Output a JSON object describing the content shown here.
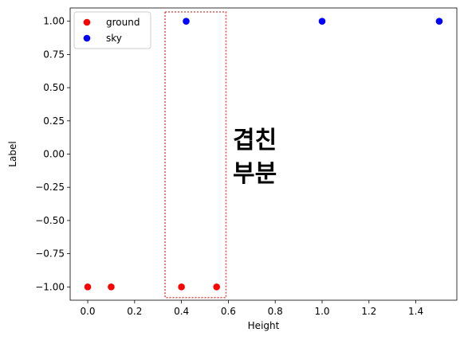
{
  "chart_data": {
    "type": "scatter",
    "xlabel": "Height",
    "ylabel": "Label",
    "xlim": [
      -0.075,
      1.575
    ],
    "ylim": [
      -1.1,
      1.1
    ],
    "xticks": [
      0.0,
      0.2,
      0.4,
      0.6,
      0.8,
      1.0,
      1.2,
      1.4
    ],
    "xtick_labels": [
      "0.0",
      "0.2",
      "0.4",
      "0.6",
      "0.8",
      "1.0",
      "1.2",
      "1.4"
    ],
    "yticks": [
      1.0,
      0.75,
      0.5,
      0.25,
      0.0,
      -0.25,
      -0.5,
      -0.75,
      -1.0
    ],
    "ytick_labels": [
      "1.00",
      "0.75",
      "0.50",
      "0.25",
      "0.00",
      "−0.25",
      "−0.50",
      "−0.75",
      "−1.00"
    ],
    "legend_position": "upper-left",
    "grid": false,
    "series": [
      {
        "name": "ground",
        "color": "#ff0000",
        "x": [
          0.0,
          0.1,
          0.4,
          0.55
        ],
        "y": [
          -1,
          -1,
          -1,
          -1
        ]
      },
      {
        "name": "sky",
        "color": "#0000ff",
        "x": [
          0.42,
          1.0,
          1.5
        ],
        "y": [
          1,
          1,
          1
        ]
      }
    ],
    "annotation": {
      "lines": [
        "겹친",
        "부분"
      ],
      "region": {
        "x": [
          0.33,
          0.59
        ],
        "y": [
          -1.08,
          1.07
        ]
      },
      "region_color": "#e05555"
    }
  }
}
